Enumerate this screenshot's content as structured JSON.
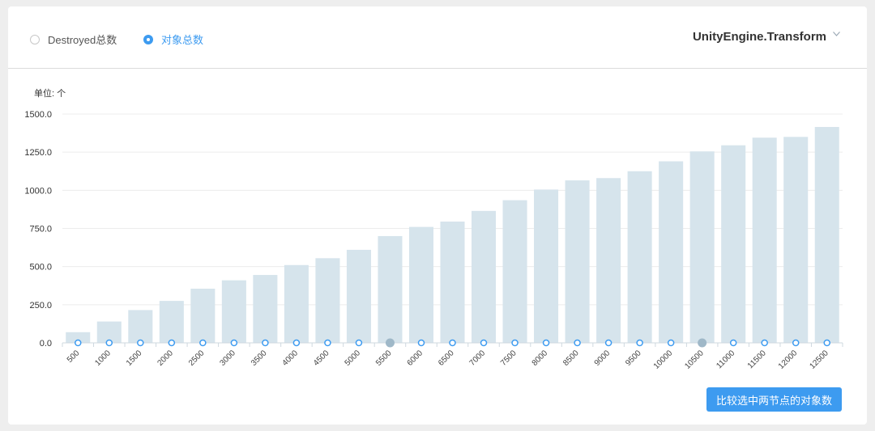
{
  "options": [
    {
      "label": "Destroyed总数",
      "checked": false
    },
    {
      "label": "对象总数",
      "checked": true
    }
  ],
  "type_select": {
    "value": "UnityEngine.Transform",
    "icon": "chevron-down-icon"
  },
  "unit_label": "单位: 个",
  "compare_button": {
    "label": "比较选中两节点的对象数"
  },
  "colors": {
    "accent": "#3d9bf0",
    "bar": "#d6e4ec",
    "point_selected": "#9fb8c8"
  },
  "chart_data": {
    "type": "bar",
    "title": "",
    "xlabel": "",
    "ylabel": "单位: 个",
    "ylim": [
      0,
      1500
    ],
    "yticks": [
      "0.0",
      "250.0",
      "500.0",
      "750.0",
      "1000.0",
      "1250.0",
      "1500.0"
    ],
    "categories": [
      "500",
      "1000",
      "1500",
      "2000",
      "2500",
      "3000",
      "3500",
      "4000",
      "4500",
      "5000",
      "5500",
      "6000",
      "6500",
      "7000",
      "7500",
      "8000",
      "8500",
      "9000",
      "9500",
      "10000",
      "10500",
      "11000",
      "11500",
      "12000",
      "12500"
    ],
    "values": [
      70,
      140,
      215,
      275,
      355,
      410,
      445,
      510,
      555,
      610,
      700,
      760,
      795,
      865,
      935,
      1005,
      1065,
      1080,
      1125,
      1190,
      1255,
      1295,
      1345,
      1350,
      1415
    ],
    "selected": [
      "5500",
      "10500"
    ],
    "grid": true
  }
}
